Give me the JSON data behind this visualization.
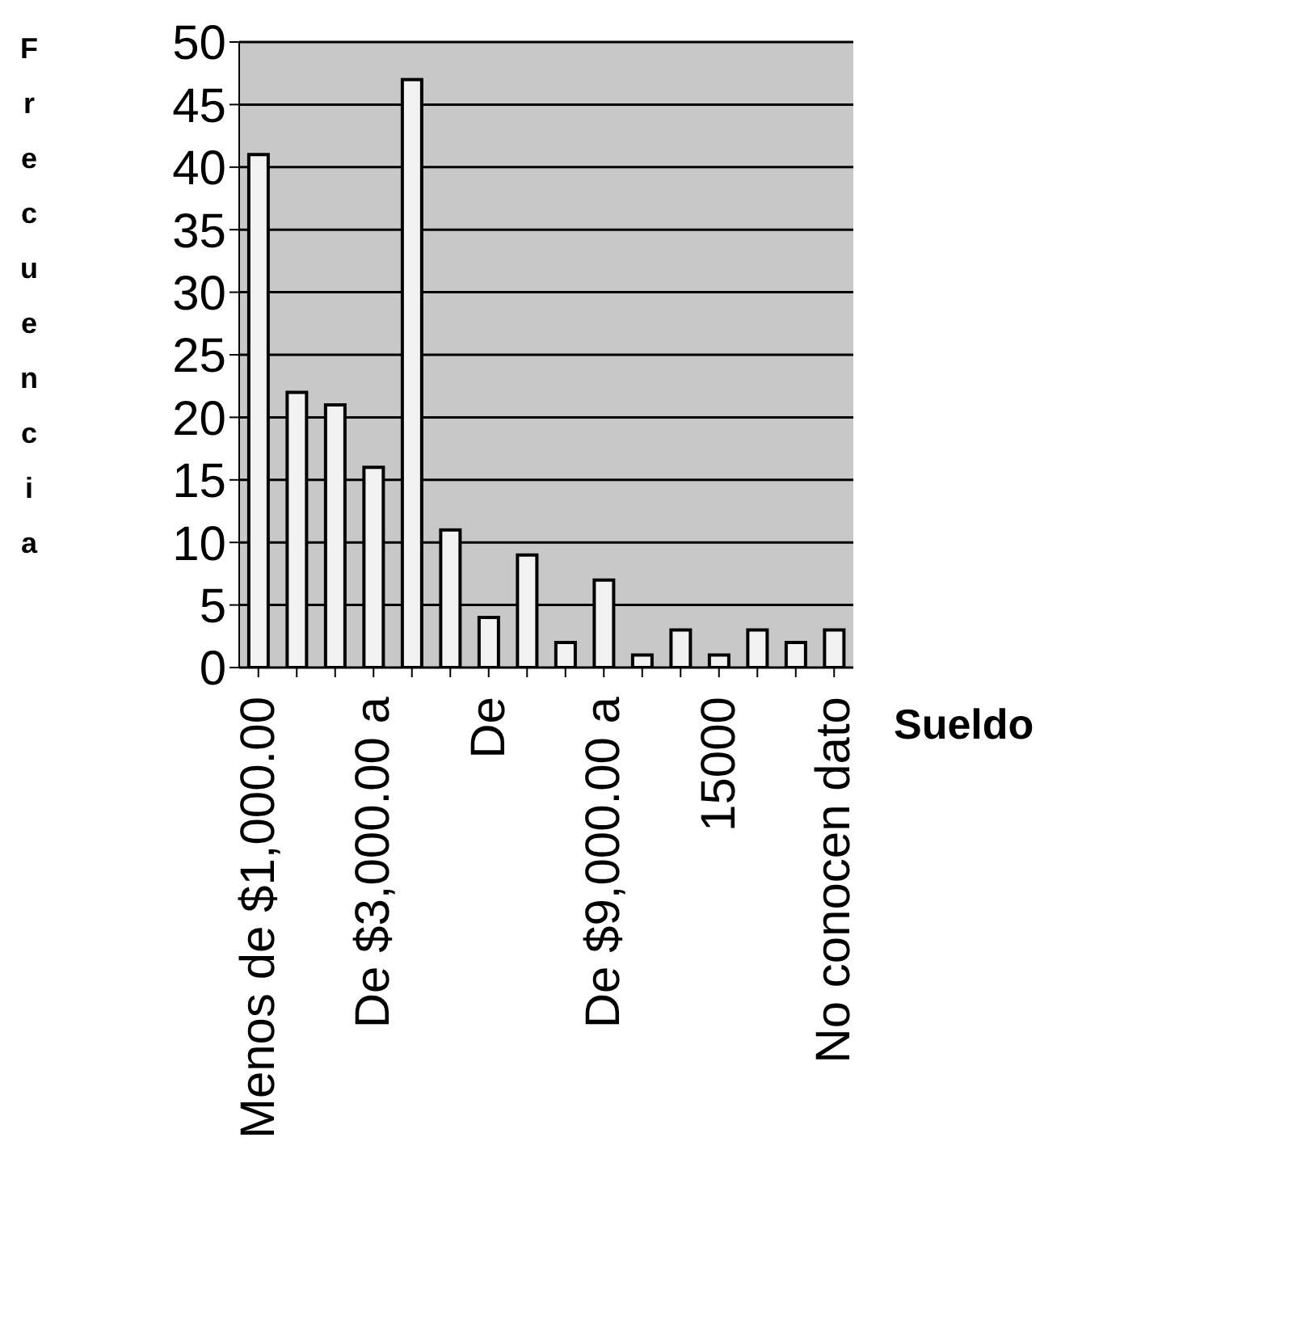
{
  "chart_data": {
    "type": "bar",
    "xlabel": "Sueldo",
    "ylabel": "Frecuencia",
    "categories": [
      "Menos de $1,000.00",
      null,
      null,
      "De $3,000.00 a",
      null,
      null,
      "De",
      null,
      null,
      "De $9,000.00 a",
      null,
      null,
      "15000",
      null,
      null,
      "No conocen dato"
    ],
    "values": [
      41,
      22,
      21,
      16,
      47,
      11,
      4,
      9,
      2,
      7,
      1,
      3,
      1,
      3,
      2,
      3
    ],
    "color": "#f2f2f2",
    "ylim": [
      0,
      50
    ],
    "yticks": [
      0,
      5,
      10,
      15,
      20,
      25,
      30,
      35,
      40,
      45,
      50
    ],
    "grid": "y"
  }
}
